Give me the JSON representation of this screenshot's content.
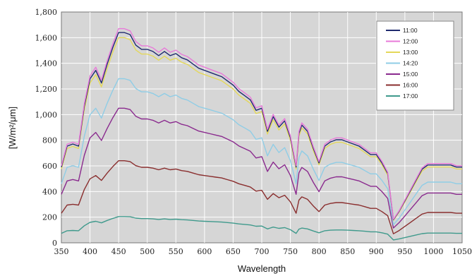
{
  "chart_data": {
    "type": "line",
    "xlabel": "Wavelength",
    "ylabel": "[W/m²/μm]",
    "xlim": [
      350,
      1050
    ],
    "ylim": [
      0,
      1800
    ],
    "xticks": [
      350,
      400,
      450,
      500,
      550,
      600,
      650,
      700,
      750,
      800,
      850,
      900,
      950,
      1000,
      1050
    ],
    "yticks": [
      0,
      200,
      400,
      600,
      800,
      1000,
      1200,
      1400,
      1600,
      1800
    ],
    "ytick_labels": [
      "0",
      "200",
      "400",
      "600",
      "800",
      "1,000",
      "1,200",
      "1,400",
      "1,600",
      "1,800"
    ],
    "grid": true,
    "legend_position": "top-right",
    "plot_background": "#d6d6d6",
    "x": [
      350,
      360,
      370,
      380,
      390,
      400,
      410,
      420,
      430,
      440,
      450,
      460,
      470,
      480,
      490,
      500,
      510,
      520,
      530,
      540,
      550,
      560,
      570,
      580,
      590,
      600,
      610,
      620,
      630,
      640,
      650,
      660,
      670,
      680,
      690,
      700,
      710,
      720,
      730,
      740,
      750,
      760,
      765,
      770,
      780,
      790,
      800,
      810,
      820,
      830,
      840,
      850,
      860,
      870,
      880,
      890,
      900,
      910,
      920,
      930,
      940,
      950,
      960,
      970,
      980,
      990,
      1000,
      1010,
      1020,
      1030,
      1040,
      1050
    ],
    "profile": [
      0.36,
      0.46,
      0.47,
      0.46,
      0.65,
      0.78,
      0.82,
      0.76,
      0.85,
      0.93,
      1.0,
      1.0,
      0.99,
      0.94,
      0.92,
      0.92,
      0.91,
      0.89,
      0.91,
      0.89,
      0.9,
      0.88,
      0.87,
      0.85,
      0.83,
      0.82,
      0.81,
      0.8,
      0.79,
      0.77,
      0.75,
      0.72,
      0.7,
      0.68,
      0.63,
      0.64,
      0.53,
      0.6,
      0.55,
      0.58,
      0.5,
      0.36,
      0.52,
      0.56,
      0.53,
      0.45,
      0.38,
      0.46,
      0.48,
      0.49,
      0.49,
      0.48,
      0.47,
      0.46,
      0.44,
      0.42,
      0.42,
      0.38,
      0.33,
      0.11,
      0.15,
      0.2,
      0.25,
      0.3,
      0.35,
      0.37,
      0.37,
      0.37,
      0.37,
      0.37,
      0.36,
      0.36
    ],
    "series": [
      {
        "name": "11:00",
        "color": "#1f2a6e",
        "scale": 1640
      },
      {
        "name": "12:00",
        "color": "#e879d9",
        "scale": 1670
      },
      {
        "name": "13:00",
        "color": "#e4d85a",
        "scale": 1600
      },
      {
        "name": "14:20",
        "color": "#8fcde6",
        "scale": 1280
      },
      {
        "name": "15:00",
        "color": "#8a2a8e",
        "scale": 1050
      },
      {
        "name": "16:00",
        "color": "#8a2e2e",
        "scale": 640
      },
      {
        "name": "17:00",
        "color": "#3f9a8c",
        "scale": 205
      }
    ]
  }
}
